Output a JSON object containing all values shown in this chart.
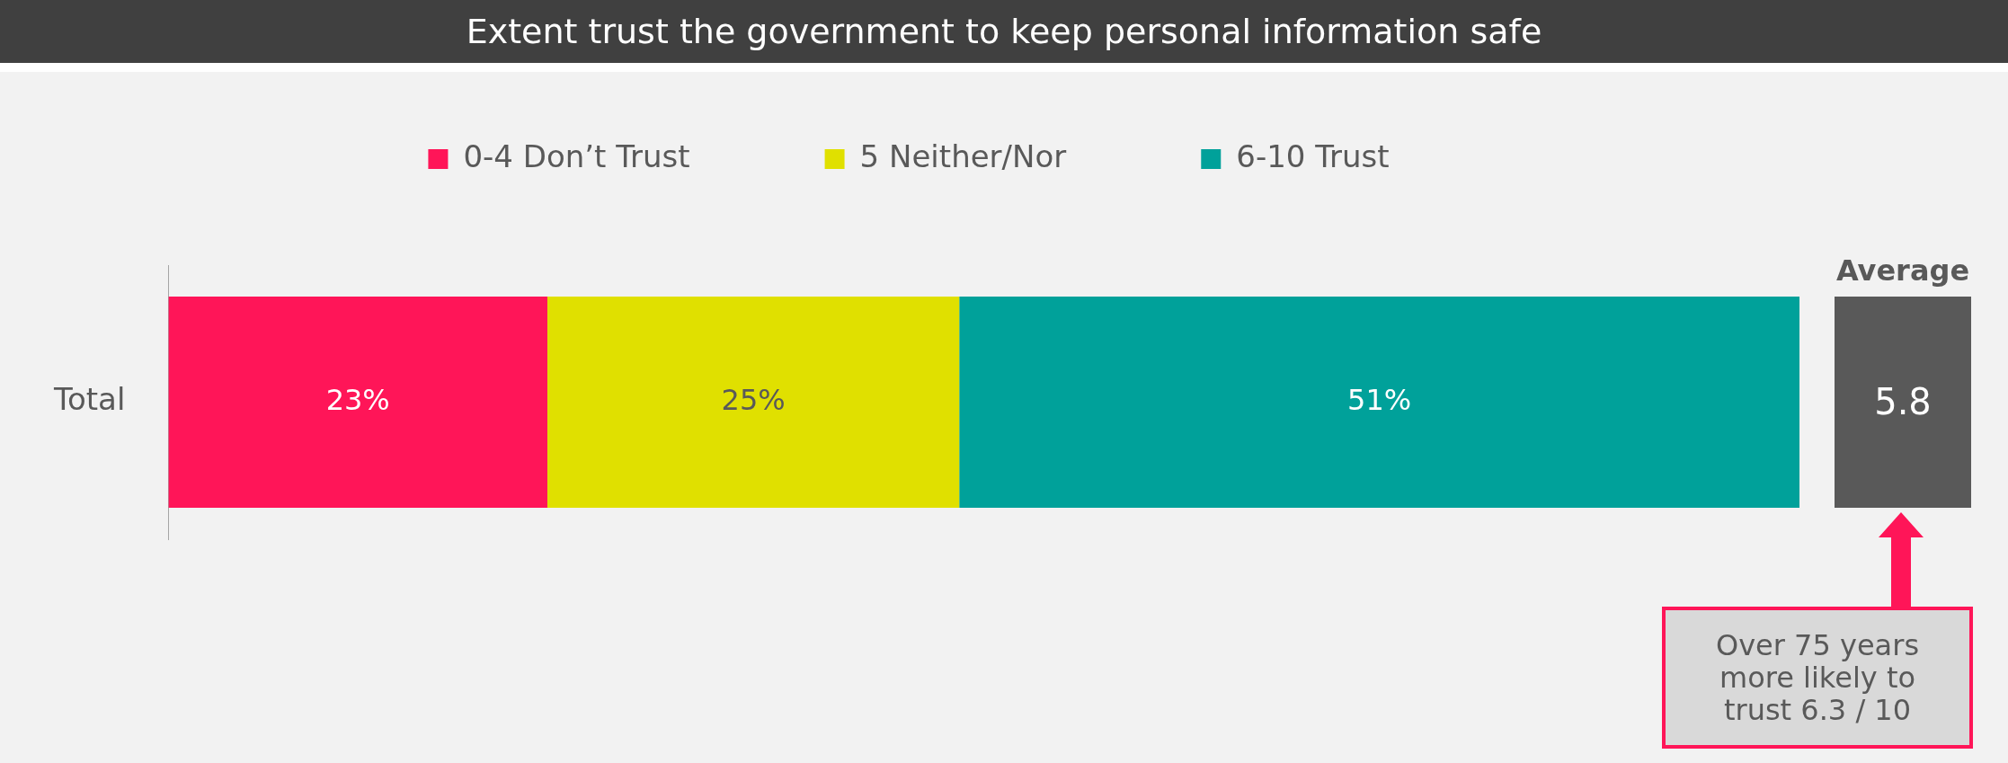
{
  "chart_data": {
    "type": "bar",
    "orientation": "horizontal",
    "stacked": true,
    "title": "Extent trust the government to keep personal information safe",
    "categories": [
      "Total"
    ],
    "series": [
      {
        "name": "0-4 Don’t Trust",
        "color": "#ff1558",
        "values": [
          23
        ],
        "value_labels": [
          "23%"
        ]
      },
      {
        "name": "5 Neither/Nor",
        "color": "#e0e000",
        "values": [
          25
        ],
        "value_labels": [
          "25%"
        ]
      },
      {
        "name": "6-10 Trust",
        "color": "#00a19a",
        "values": [
          51
        ],
        "value_labels": [
          "51%"
        ]
      }
    ],
    "legend": "top",
    "annotations": [
      "Average",
      "5.8",
      "Over 75 years more likely to trust 6.3 / 10"
    ]
  }
}
